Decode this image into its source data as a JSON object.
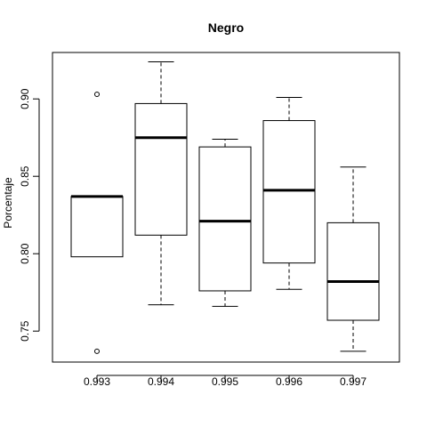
{
  "chart_data": {
    "type": "box",
    "title": "Negro",
    "xlabel": "",
    "ylabel": "Porcentaje",
    "ylim": [
      0.73,
      0.93
    ],
    "yticks": [
      0.75,
      0.8,
      0.85,
      0.9
    ],
    "ytick_labels": [
      "0.75",
      "0.80",
      "0.85",
      "0.90"
    ],
    "categories": [
      "0.993",
      "0.994",
      "0.995",
      "0.996",
      "0.997"
    ],
    "boxes": [
      {
        "category": "0.993",
        "whisker_low": 0.798,
        "q1": 0.798,
        "median": 0.837,
        "q3": 0.837,
        "whisker_high": 0.837,
        "outliers": [
          0.903,
          0.737
        ]
      },
      {
        "category": "0.994",
        "whisker_low": 0.767,
        "q1": 0.812,
        "median": 0.875,
        "q3": 0.897,
        "whisker_high": 0.924,
        "outliers": []
      },
      {
        "category": "0.995",
        "whisker_low": 0.766,
        "q1": 0.776,
        "median": 0.821,
        "q3": 0.869,
        "whisker_high": 0.874,
        "outliers": []
      },
      {
        "category": "0.996",
        "whisker_low": 0.777,
        "q1": 0.794,
        "median": 0.841,
        "q3": 0.886,
        "whisker_high": 0.901,
        "outliers": []
      },
      {
        "category": "0.997",
        "whisker_low": 0.737,
        "q1": 0.757,
        "median": 0.782,
        "q3": 0.82,
        "whisker_high": 0.856,
        "outliers": []
      }
    ]
  }
}
